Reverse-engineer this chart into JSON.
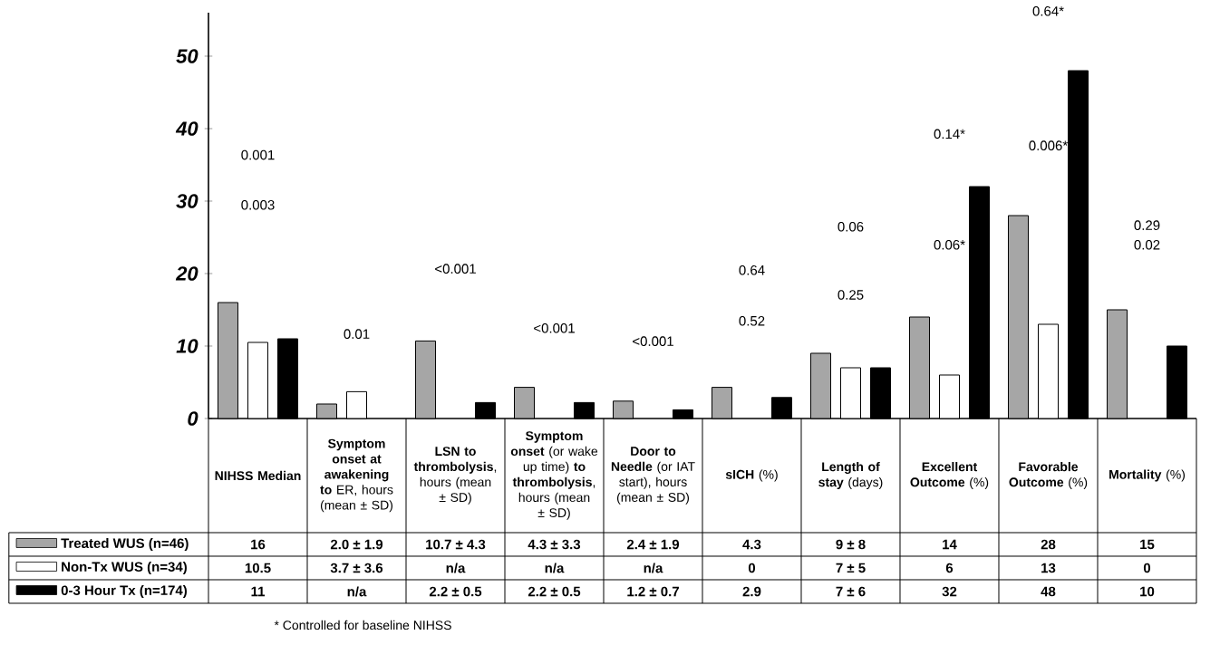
{
  "chart_data": {
    "type": "bar",
    "categories": [
      "**NIHSS Median**",
      "**Symptom onset at awakening to** ER, hours (mean ± SD)",
      "**LSN to thrombolysis**, hours (mean ± SD)",
      "**Symptom onset** (or wake up time) **to thrombolysis**, hours (mean ± SD)",
      "**Door to Needle** (or IAT start), hours (mean ± SD)",
      "**sICH** (%)",
      "**Length of stay** (days)",
      "**Excellent Outcome** (%)",
      "**Favorable Outcome** (%)",
      "**Mortality** (%)"
    ],
    "series": [
      {
        "name": "Treated WUS (n=46)",
        "color": "#a6a6a6",
        "values": [
          16,
          2.0,
          10.7,
          4.3,
          2.4,
          4.3,
          9,
          14,
          28,
          15
        ],
        "value_labels": [
          "16",
          "2.0 ± 1.9",
          "10.7 ± 4.3",
          "4.3 ± 3.3",
          "2.4 ± 1.9",
          "4.3",
          "9 ± 8",
          "14",
          "28",
          "15"
        ]
      },
      {
        "name": "Non-Tx WUS (n=34)",
        "color": "#ffffff",
        "values": [
          10.5,
          3.7,
          null,
          null,
          null,
          0,
          7,
          6,
          13,
          0
        ],
        "value_labels": [
          "10.5",
          "3.7 ± 3.6",
          "n/a",
          "n/a",
          "n/a",
          "0",
          "7 ± 5",
          "6",
          "13",
          "0"
        ]
      },
      {
        "name": "0-3 Hour Tx (n=174)",
        "color": "#000000",
        "values": [
          11,
          null,
          2.2,
          2.2,
          1.2,
          2.9,
          7,
          32,
          48,
          10
        ],
        "value_labels": [
          "11",
          "n/a",
          "2.2 ± 0.5",
          "2.2 ± 0.5",
          "1.2 ± 0.7",
          "2.9",
          "7 ± 6",
          "32",
          "48",
          "10"
        ]
      }
    ],
    "ylim": [
      0,
      56
    ],
    "yticks": [
      0,
      10,
      20,
      30,
      40,
      50
    ],
    "legend": "bottom left",
    "annotations": [
      "0.001",
      "0.003",
      "0.01",
      "<0.001",
      "<0.001",
      "<0.001",
      "0.64",
      "0.52",
      "0.06",
      "0.25",
      "0.14*",
      "0.06*",
      "0.64*",
      "0.006*",
      "0.29",
      "0.02",
      "* Controlled for baseline NIHSS"
    ]
  }
}
